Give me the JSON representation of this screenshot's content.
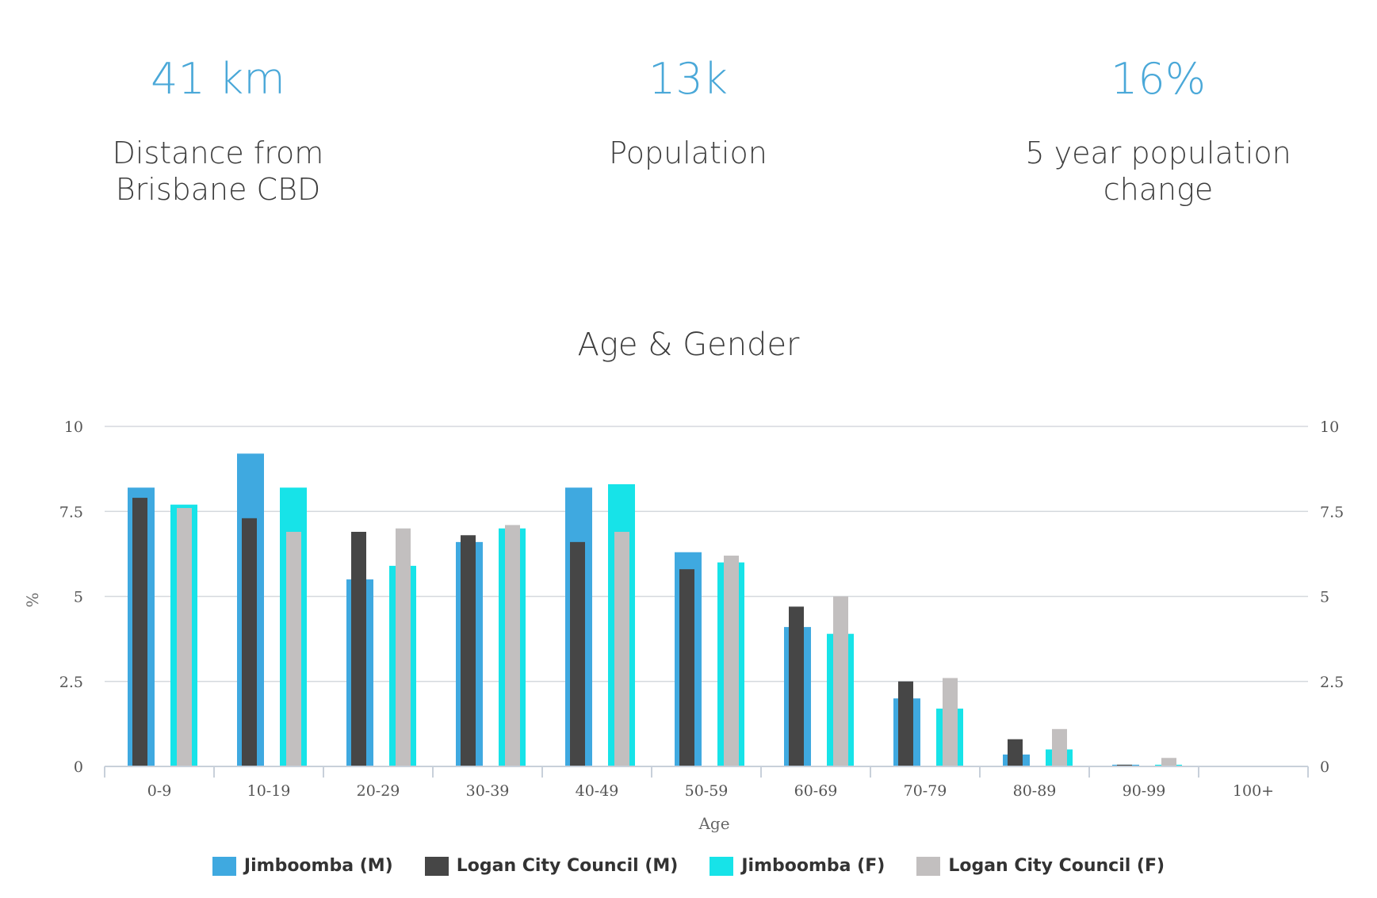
{
  "stats": [
    {
      "value": "41 km",
      "label": "Distance from Brisbane CBD"
    },
    {
      "value": "13k",
      "label": "Population"
    },
    {
      "value": "16%",
      "label": "5 year population change"
    }
  ],
  "chart_data": {
    "type": "bar",
    "title": "Age & Gender",
    "xlabel": "Age",
    "ylabel": "%",
    "ylim": [
      0,
      10
    ],
    "yticks": [
      "0",
      "2.5",
      "5",
      "7.5",
      "10"
    ],
    "categories": [
      "0-9",
      "10-19",
      "20-29",
      "30-39",
      "40-49",
      "50-59",
      "60-69",
      "70-79",
      "80-89",
      "90-99",
      "100+"
    ],
    "series": [
      {
        "name": "Jimboomba (M)",
        "color": "#3fa9e0",
        "group": "male",
        "layer": "back",
        "values": [
          8.2,
          9.2,
          5.5,
          6.6,
          8.2,
          6.3,
          4.1,
          2.0,
          0.35,
          0.05,
          0
        ]
      },
      {
        "name": "Logan City Council (M)",
        "color": "#464646",
        "group": "male",
        "layer": "front",
        "values": [
          7.9,
          7.3,
          6.9,
          6.8,
          6.6,
          5.8,
          4.7,
          2.5,
          0.8,
          0.05,
          0
        ]
      },
      {
        "name": "Jimboomba (F)",
        "color": "#17e3e8",
        "group": "female",
        "layer": "back",
        "values": [
          7.7,
          8.2,
          5.9,
          7.0,
          8.3,
          6.0,
          3.9,
          1.7,
          0.5,
          0.05,
          0
        ]
      },
      {
        "name": "Logan City Council (F)",
        "color": "#c2bfbf",
        "group": "female",
        "layer": "front",
        "values": [
          7.6,
          6.9,
          7.0,
          7.1,
          6.9,
          6.2,
          5.0,
          2.6,
          1.1,
          0.25,
          0
        ]
      }
    ]
  }
}
